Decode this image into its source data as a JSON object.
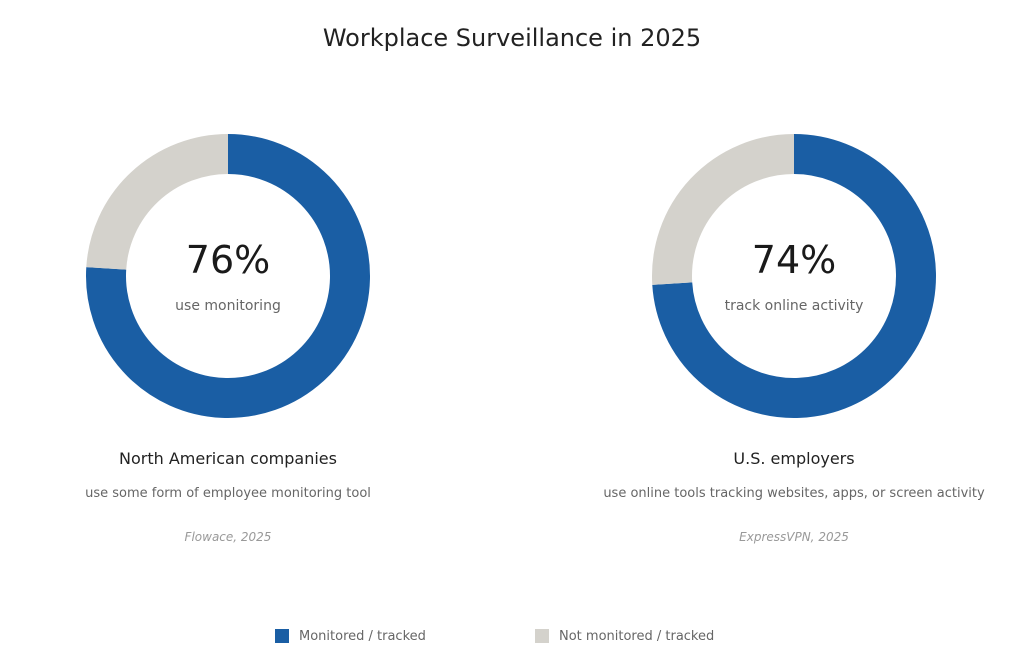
{
  "title": "Workplace Surveillance in 2025",
  "colors": {
    "monitored": "#1a5ea4",
    "not_monitored": "#d4d2cc"
  },
  "chart_data": [
    {
      "type": "pie",
      "style": "donut",
      "center_value": "76%",
      "center_label": "use monitoring",
      "heading": "North American companies",
      "description": "use some form of employee monitoring tool",
      "source": "Flowace, 2025",
      "slices": [
        {
          "label": "Monitored / tracked",
          "value": 76
        },
        {
          "label": "Not monitored / tracked",
          "value": 24
        }
      ]
    },
    {
      "type": "pie",
      "style": "donut",
      "center_value": "74%",
      "center_label": "track online activity",
      "heading": "U.S. employers",
      "description": "use online tools tracking websites, apps, or screen activity",
      "source": "ExpressVPN, 2025",
      "slices": [
        {
          "label": "Monitored / tracked",
          "value": 74
        },
        {
          "label": "Not monitored / tracked",
          "value": 26
        }
      ]
    }
  ],
  "legend": {
    "position": "bottom-center",
    "items": [
      {
        "label": "Monitored / tracked",
        "color": "#1a5ea4"
      },
      {
        "label": "Not monitored / tracked",
        "color": "#d4d2cc"
      }
    ]
  }
}
